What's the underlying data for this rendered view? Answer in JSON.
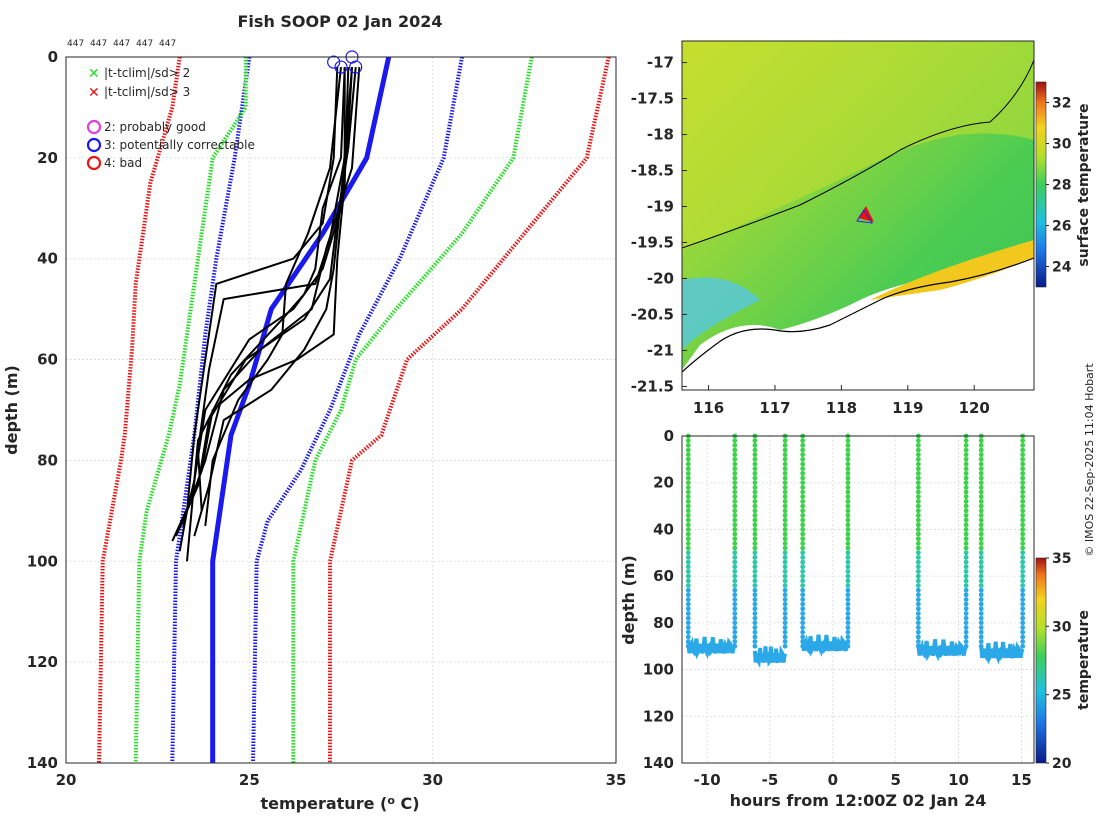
{
  "title": "Fish SOOP 02 Jan 2024",
  "count_labels": [
    "447",
    "447",
    "447",
    "447",
    "447"
  ],
  "copyright": "© IMOS 22-Sep-2025 11:04 Hobart",
  "legend": [
    {
      "symbol": "x",
      "color": "#22dd22",
      "text": "|t-tclim|/sd> 2"
    },
    {
      "symbol": "x",
      "color": "#ee1111",
      "text": "|t-tclim|/sd> 3"
    },
    {
      "symbol": "o",
      "color": "#e040e0",
      "text": "2: probably good"
    },
    {
      "symbol": "o",
      "color": "#1a1aee",
      "text": "3: potentially correctable"
    },
    {
      "symbol": "o",
      "color": "#ee1111",
      "text": "4: bad"
    }
  ],
  "chart_data": [
    {
      "type": "line",
      "name": "temperature-depth profiles",
      "xlabel": "temperature (o C)",
      "ylabel": "depth (m)",
      "xlim": [
        20,
        35
      ],
      "ylim": [
        140,
        0
      ],
      "xticks": [
        20,
        25,
        30,
        35
      ],
      "yticks": [
        0,
        20,
        40,
        60,
        80,
        100,
        120,
        140
      ],
      "grid": true,
      "series": [
        {
          "name": "climatology mean",
          "color": "#1a1aee",
          "style": "solid-thick",
          "points": [
            [
              28.8,
              0
            ],
            [
              28.2,
              20
            ],
            [
              27.0,
              35
            ],
            [
              25.6,
              50
            ],
            [
              25.0,
              65
            ],
            [
              24.5,
              75
            ],
            [
              24.2,
              90
            ],
            [
              24.0,
              100
            ],
            [
              24.0,
              140
            ]
          ]
        },
        {
          "name": "mean - 1 sd",
          "color": "#1a1aee",
          "style": "dotted",
          "points": [
            [
              25.0,
              0
            ],
            [
              24.6,
              20
            ],
            [
              24.1,
              40
            ],
            [
              23.8,
              55
            ],
            [
              23.5,
              75
            ],
            [
              23.2,
              90
            ],
            [
              23.0,
              100
            ],
            [
              22.9,
              140
            ]
          ]
        },
        {
          "name": "mean + 1 sd",
          "color": "#1a1aee",
          "style": "dotted",
          "points": [
            [
              30.8,
              0
            ],
            [
              30.3,
              20
            ],
            [
              29.1,
              40
            ],
            [
              28.0,
              55
            ],
            [
              27.2,
              70
            ],
            [
              26.4,
              82
            ],
            [
              25.5,
              92
            ],
            [
              25.2,
              100
            ],
            [
              25.1,
              140
            ]
          ]
        },
        {
          "name": "mean - 2 sd",
          "color": "#22dd22",
          "style": "dotted",
          "points": [
            [
              24.9,
              0
            ],
            [
              24.9,
              10
            ],
            [
              24.0,
              20
            ],
            [
              23.6,
              40
            ],
            [
              23.3,
              55
            ],
            [
              23.1,
              65
            ],
            [
              22.8,
              75
            ],
            [
              22.2,
              90
            ],
            [
              22.0,
              100
            ],
            [
              21.9,
              140
            ]
          ]
        },
        {
          "name": "mean + 2 sd",
          "color": "#22dd22",
          "style": "dotted",
          "points": [
            [
              32.7,
              0
            ],
            [
              32.2,
              20
            ],
            [
              30.8,
              35
            ],
            [
              29.0,
              50
            ],
            [
              27.9,
              60
            ],
            [
              27.5,
              70
            ],
            [
              26.8,
              80
            ],
            [
              26.5,
              90
            ],
            [
              26.2,
              100
            ],
            [
              26.2,
              140
            ]
          ]
        },
        {
          "name": "mean - 3 sd",
          "color": "#ee1111",
          "style": "dotted",
          "points": [
            [
              23.1,
              0
            ],
            [
              22.9,
              10
            ],
            [
              22.3,
              25
            ],
            [
              21.9,
              45
            ],
            [
              21.8,
              58
            ],
            [
              21.6,
              75
            ],
            [
              21.5,
              80
            ],
            [
              21.0,
              100
            ],
            [
              20.9,
              140
            ]
          ]
        },
        {
          "name": "mean + 3 sd",
          "color": "#ee1111",
          "style": "dotted",
          "points": [
            [
              34.8,
              0
            ],
            [
              34.2,
              20
            ],
            [
              32.5,
              35
            ],
            [
              30.8,
              50
            ],
            [
              29.3,
              60
            ],
            [
              28.6,
              75
            ],
            [
              27.8,
              80
            ],
            [
              27.5,
              90
            ],
            [
              27.2,
              100
            ],
            [
              27.2,
              140
            ]
          ]
        },
        {
          "name": "profile 1",
          "color": "#000000",
          "points": [
            [
              27.4,
              2
            ],
            [
              27.3,
              20
            ],
            [
              27.0,
              33
            ],
            [
              26.2,
              40
            ],
            [
              24.1,
              45
            ],
            [
              23.8,
              60
            ],
            [
              23.5,
              75
            ],
            [
              23.3,
              90
            ],
            [
              23.1,
              98
            ]
          ]
        },
        {
          "name": "profile 2",
          "color": "#000000",
          "points": [
            [
              27.6,
              2
            ],
            [
              27.6,
              20
            ],
            [
              27.2,
              36
            ],
            [
              26.8,
              45
            ],
            [
              24.3,
              48
            ],
            [
              23.9,
              62
            ],
            [
              23.6,
              78
            ],
            [
              23.7,
              90
            ]
          ]
        },
        {
          "name": "profile 3",
          "color": "#000000",
          "points": [
            [
              27.8,
              2
            ],
            [
              27.7,
              15
            ],
            [
              27.5,
              30
            ],
            [
              27.0,
              42
            ],
            [
              26.2,
              50
            ],
            [
              25.0,
              56
            ],
            [
              23.8,
              70
            ],
            [
              23.5,
              84
            ],
            [
              23.2,
              93
            ]
          ]
        },
        {
          "name": "profile 4",
          "color": "#000000",
          "points": [
            [
              27.9,
              2
            ],
            [
              27.7,
              18
            ],
            [
              27.4,
              32
            ],
            [
              27.2,
              44
            ],
            [
              26.5,
              52
            ],
            [
              24.9,
              60
            ],
            [
              23.9,
              72
            ],
            [
              23.6,
              85
            ],
            [
              23.0,
              95
            ]
          ]
        },
        {
          "name": "profile 5",
          "color": "#000000",
          "points": [
            [
              28.0,
              2
            ],
            [
              27.8,
              22
            ],
            [
              27.1,
              38
            ],
            [
              26.7,
              50
            ],
            [
              25.3,
              58
            ],
            [
              24.3,
              66
            ],
            [
              23.8,
              80
            ],
            [
              23.4,
              88
            ],
            [
              22.9,
              96
            ]
          ]
        },
        {
          "name": "profile 6",
          "color": "#000000",
          "points": [
            [
              27.7,
              2
            ],
            [
              27.6,
              25
            ],
            [
              27.4,
              40
            ],
            [
              27.3,
              55
            ],
            [
              26.3,
              60
            ],
            [
              25.0,
              64
            ],
            [
              24.0,
              70
            ],
            [
              23.7,
              82
            ],
            [
              23.2,
              92
            ]
          ]
        },
        {
          "name": "profile 7",
          "color": "#000000",
          "points": [
            [
              27.6,
              2
            ],
            [
              27.5,
              20
            ],
            [
              27.0,
              30
            ],
            [
              26.8,
              42
            ],
            [
              26.5,
              47
            ],
            [
              25.9,
              52
            ],
            [
              24.5,
              63
            ],
            [
              23.6,
              76
            ],
            [
              23.3,
              100
            ]
          ]
        },
        {
          "name": "profile 8",
          "color": "#000000",
          "points": [
            [
              27.5,
              2
            ],
            [
              27.2,
              22
            ],
            [
              26.6,
              35
            ],
            [
              26.0,
              45
            ],
            [
              25.9,
              55
            ],
            [
              25.5,
              60
            ],
            [
              24.7,
              68
            ],
            [
              24.0,
              80
            ],
            [
              23.8,
              93
            ]
          ]
        },
        {
          "name": "profile 9",
          "color": "#000000",
          "points": [
            [
              27.8,
              2
            ],
            [
              27.5,
              28
            ],
            [
              27.3,
              42
            ],
            [
              27.1,
              50
            ],
            [
              26.5,
              58
            ],
            [
              25.6,
              66
            ],
            [
              24.3,
              72
            ],
            [
              23.9,
              85
            ],
            [
              23.5,
              95
            ]
          ]
        }
      ],
      "flag_markers": [
        {
          "flag": "3: potentially correctable",
          "color": "#1a1aee",
          "points": [
            [
              27.3,
              1
            ],
            [
              27.5,
              2
            ],
            [
              27.8,
              0
            ],
            [
              27.9,
              2
            ]
          ]
        }
      ]
    },
    {
      "type": "heatmap",
      "name": "satellite surface temperature map",
      "xlim": [
        115.6,
        120.9
      ],
      "ylim": [
        -21.55,
        -16.7
      ],
      "xticks": [
        116,
        117,
        118,
        119,
        120
      ],
      "yticks": [
        -17,
        -17.5,
        -18,
        -18.5,
        -19,
        -19.5,
        -20,
        -20.5,
        -21,
        -21.5
      ],
      "colorbar_label": "surface temperature",
      "colorbar_range": [
        23,
        33
      ],
      "colorbar_ticks": [
        24,
        26,
        28,
        30,
        32
      ],
      "station_marker": {
        "lon": 118.4,
        "lat": -19.05
      }
    },
    {
      "type": "scatter",
      "name": "depth vs time",
      "xlabel": "hours from 12:00Z 02 Jan 24",
      "ylabel": "depth (m)",
      "xlim": [
        -12,
        16
      ],
      "ylim": [
        140,
        0
      ],
      "xticks": [
        -10,
        -5,
        0,
        5,
        10,
        15
      ],
      "yticks": [
        0,
        20,
        40,
        60,
        80,
        100,
        120,
        140
      ],
      "colorbar_label": "temperature",
      "colorbar_range": [
        20,
        35
      ],
      "colorbar_ticks": [
        20,
        25,
        30,
        35
      ],
      "casts_hours": [
        -11.5,
        -7.8,
        -6.2,
        -3.8,
        -2.4,
        1.2,
        6.8,
        10.6,
        11.8,
        15.1
      ],
      "segments": [
        {
          "t0": -11.5,
          "t1": -7.8,
          "depth": 91
        },
        {
          "t0": -6.2,
          "t1": -3.8,
          "depth": 95
        },
        {
          "t0": -2.4,
          "t1": 1.2,
          "depth": 90
        },
        {
          "t0": 6.8,
          "t1": 10.6,
          "depth": 92
        },
        {
          "t0": 11.8,
          "t1": 15.1,
          "depth": 93
        }
      ]
    }
  ]
}
